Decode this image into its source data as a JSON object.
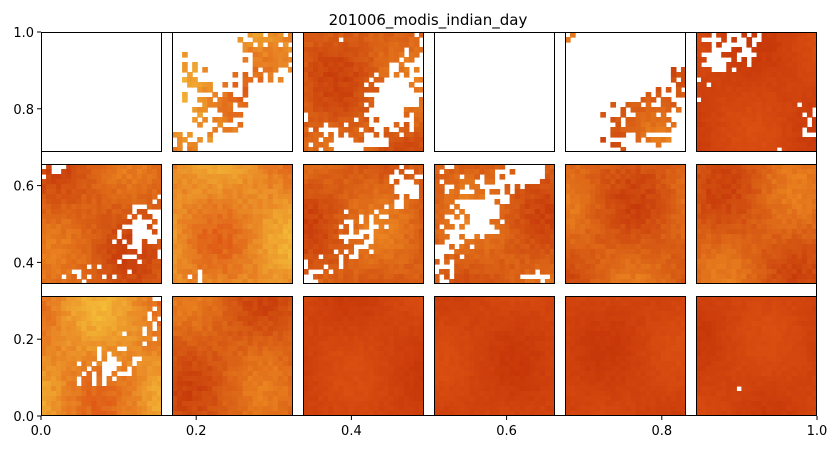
{
  "chart_data": {
    "type": "heatmap",
    "title": "201006_modis_indian_day",
    "xlabel": "",
    "ylabel": "",
    "xlim": [
      0,
      1
    ],
    "ylim": [
      0,
      1
    ],
    "xticks": [
      0.0,
      0.2,
      0.4,
      0.6,
      0.8,
      1.0
    ],
    "xtick_labels": [
      "0.0",
      "0.2",
      "0.4",
      "0.6",
      "0.8",
      "1.0"
    ],
    "yticks": [
      0.0,
      0.2,
      0.4,
      0.6,
      0.8,
      1.0
    ],
    "ytick_labels": [
      "0.0",
      "0.2",
      "0.4",
      "0.6",
      "0.8",
      "1.0"
    ],
    "grid": false,
    "legend": "none",
    "colormap": "YlOrRd-like (orange-red)",
    "missing_color": "#ffffff",
    "panel_grid": {
      "rows": 3,
      "cols": 6
    },
    "palette": {
      "dark": "#c43408",
      "mid": "#dd5212",
      "light": "#ee8a22",
      "bright": "#f6c23a"
    },
    "panels": [
      {
        "row": 0,
        "col": 0,
        "coverage": 0.04,
        "tone": "light"
      },
      {
        "row": 0,
        "col": 1,
        "coverage": 0.35,
        "tone": "light"
      },
      {
        "row": 0,
        "col": 2,
        "coverage": 0.62,
        "tone": "mid"
      },
      {
        "row": 0,
        "col": 3,
        "coverage": 0.06,
        "tone": "mid"
      },
      {
        "row": 0,
        "col": 4,
        "coverage": 0.32,
        "tone": "mid"
      },
      {
        "row": 0,
        "col": 5,
        "coverage": 0.72,
        "tone": "dark"
      },
      {
        "row": 1,
        "col": 0,
        "coverage": 0.68,
        "tone": "mid"
      },
      {
        "row": 1,
        "col": 1,
        "coverage": 0.86,
        "tone": "light"
      },
      {
        "row": 1,
        "col": 2,
        "coverage": 0.72,
        "tone": "mid"
      },
      {
        "row": 1,
        "col": 3,
        "coverage": 0.62,
        "tone": "mid"
      },
      {
        "row": 1,
        "col": 4,
        "coverage": 0.85,
        "tone": "mid"
      },
      {
        "row": 1,
        "col": 5,
        "coverage": 0.82,
        "tone": "mid"
      },
      {
        "row": 2,
        "col": 0,
        "coverage": 0.74,
        "tone": "light"
      },
      {
        "row": 2,
        "col": 1,
        "coverage": 0.97,
        "tone": "mid"
      },
      {
        "row": 2,
        "col": 2,
        "coverage": 0.93,
        "tone": "dark"
      },
      {
        "row": 2,
        "col": 3,
        "coverage": 0.91,
        "tone": "dark"
      },
      {
        "row": 2,
        "col": 4,
        "coverage": 0.99,
        "tone": "dark"
      },
      {
        "row": 2,
        "col": 5,
        "coverage": 0.98,
        "tone": "dark"
      }
    ]
  }
}
